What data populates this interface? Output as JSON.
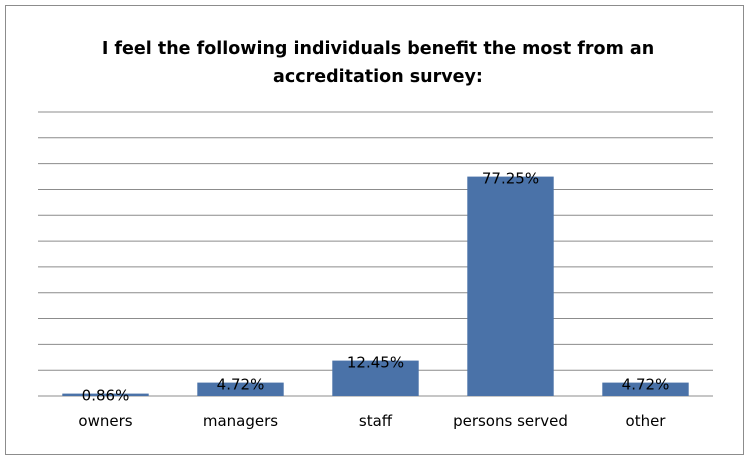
{
  "chart_data": {
    "type": "bar",
    "title_lines": [
      "I feel the following individuals benefit the most from an",
      "accreditation survey:"
    ],
    "categories": [
      "owners",
      "managers",
      "staff",
      "persons served",
      "other"
    ],
    "values": [
      0.86,
      4.72,
      12.45,
      77.25,
      4.72
    ],
    "data_labels": [
      "0.86%",
      "4.72%",
      "12.45%",
      "77.25%",
      "4.72%"
    ],
    "ylim": [
      0,
      100
    ],
    "gridline_step": 9.09,
    "grid": true,
    "bar_color": "#4a72a8",
    "xlabel": "",
    "ylabel": ""
  }
}
